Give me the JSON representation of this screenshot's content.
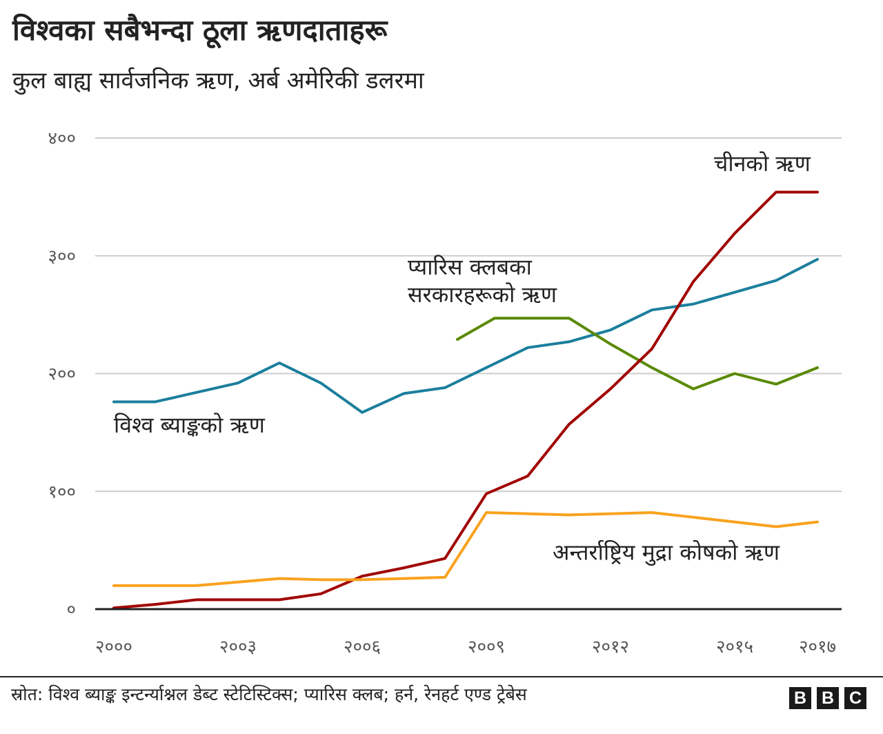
{
  "title": "विश्वका सबैभन्दा ठूला ऋणदाताहरू",
  "subtitle": "कुल बाह्य सार्वजनिक ऋण, अर्ब अमेरिकी डलरमा",
  "source": "स्रोत: विश्व ब्याङ्क इन्टर्न्याश्नल डेब्ट स्टेटिस्टिक्स; प्यारिस क्लब; हर्न, रेनहर्ट एण्ड ट्रेबेस",
  "logo": [
    "B",
    "B",
    "C"
  ],
  "chart_data": {
    "type": "line",
    "ylim": [
      0,
      400
    ],
    "xlim": [
      2000,
      2018
    ],
    "grid": true,
    "y_ticks": [
      {
        "value": 0,
        "label": "०"
      },
      {
        "value": 100,
        "label": "१००"
      },
      {
        "value": 200,
        "label": "२००"
      },
      {
        "value": 300,
        "label": "३००"
      },
      {
        "value": 400,
        "label": "४००"
      }
    ],
    "x_ticks": [
      {
        "value": 2000,
        "label": "२०००"
      },
      {
        "value": 2003,
        "label": "२००३"
      },
      {
        "value": 2006,
        "label": "२००६"
      },
      {
        "value": 2009,
        "label": "२००९"
      },
      {
        "value": 2012,
        "label": "२०१२"
      },
      {
        "value": 2015,
        "label": "२०१५"
      },
      {
        "value": 2017,
        "label": "२०१७"
      }
    ],
    "series": [
      {
        "name": "विश्व ब्याङ्कको ऋण",
        "color": "#1b7f9d",
        "label_lines": [
          "विश्व ब्याङ्कको ऋण"
        ],
        "label_anchor": {
          "x": 2000.0,
          "y": 150
        },
        "x": [
          2000,
          2001,
          2002,
          2003,
          2004,
          2005,
          2006,
          2007,
          2008,
          2009,
          2010,
          2011,
          2012,
          2013,
          2014,
          2015,
          2016,
          2017
        ],
        "y": [
          176,
          176,
          184,
          192,
          209,
          192,
          167,
          183,
          188,
          205,
          222,
          227,
          237,
          254,
          259,
          269,
          279,
          297
        ]
      },
      {
        "name": "प्यारिस क्लबका सरकारहरूको ऋण",
        "color": "#5a8a06",
        "label_lines": [
          "प्यारिस क्लबका",
          "सरकारहरूको ऋण"
        ],
        "label_anchor": {
          "x": 2007.1,
          "y": 284
        },
        "x": [
          2008.3,
          2009.2,
          2010,
          2011,
          2012,
          2013,
          2014,
          2015,
          2016,
          2017
        ],
        "y": [
          229,
          247,
          247,
          247,
          225,
          205,
          187,
          200,
          191,
          205
        ]
      },
      {
        "name": "चीनको ऋण",
        "color": "#a10505",
        "label_lines": [
          "चीनको ऋण"
        ],
        "label_anchor": {
          "x": 2014.5,
          "y": 372
        },
        "x": [
          2000,
          2001,
          2002,
          2003,
          2004,
          2005,
          2006,
          2007,
          2008,
          2009,
          2010,
          2011,
          2012,
          2013,
          2014,
          2015,
          2016,
          2017
        ],
        "y": [
          1,
          4,
          8,
          8,
          8,
          13,
          28,
          35,
          43,
          98,
          113,
          157,
          187,
          221,
          278,
          319,
          354,
          354
        ]
      },
      {
        "name": "अन्तर्राष्ट्रिय मुद्रा कोषको ऋण",
        "color": "#f9a21e",
        "label_lines": [
          "अन्तर्राष्ट्रिय मुद्रा कोषको ऋण"
        ],
        "label_anchor": {
          "x": 2010.6,
          "y": 42
        },
        "x": [
          2000,
          2001,
          2002,
          2003,
          2004,
          2005,
          2006,
          2007,
          2008,
          2009,
          2010,
          2011,
          2012,
          2013,
          2014,
          2015,
          2016,
          2017
        ],
        "y": [
          20,
          20,
          20,
          23,
          26,
          25,
          25,
          26,
          27,
          82,
          81,
          80,
          81,
          82,
          78,
          74,
          70,
          74
        ]
      }
    ]
  }
}
